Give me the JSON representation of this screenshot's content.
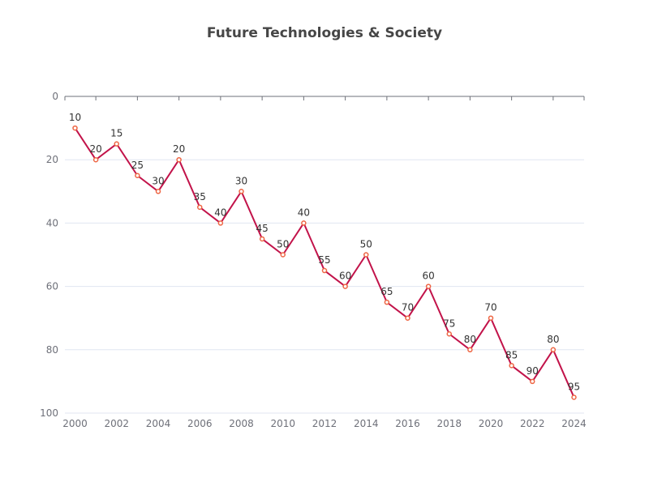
{
  "chart_data": {
    "type": "line",
    "title": "Future Technologies & Society",
    "xlabel": "",
    "ylabel": "",
    "y_inverted": true,
    "ylim": [
      0,
      100
    ],
    "yticks": [
      0,
      20,
      40,
      60,
      80,
      100
    ],
    "xlim": [
      2000,
      2024
    ],
    "xticks": [
      2000,
      2002,
      2004,
      2006,
      2008,
      2010,
      2012,
      2014,
      2016,
      2018,
      2020,
      2022,
      2024
    ],
    "grid": true,
    "x": [
      2000,
      2001,
      2002,
      2003,
      2004,
      2005,
      2006,
      2007,
      2008,
      2009,
      2010,
      2011,
      2012,
      2013,
      2014,
      2015,
      2016,
      2017,
      2018,
      2019,
      2020,
      2021,
      2022,
      2023,
      2024
    ],
    "series": [
      {
        "values": [
          10,
          20,
          15,
          25,
          30,
          20,
          35,
          40,
          30,
          45,
          50,
          40,
          55,
          60,
          50,
          65,
          70,
          60,
          75,
          80,
          70,
          85,
          90,
          80,
          95
        ],
        "color": "#c2134a",
        "marker_color": "#ee6644"
      }
    ],
    "colors": {
      "grid": "#e0e6f1",
      "axis": "#6e7079"
    }
  }
}
